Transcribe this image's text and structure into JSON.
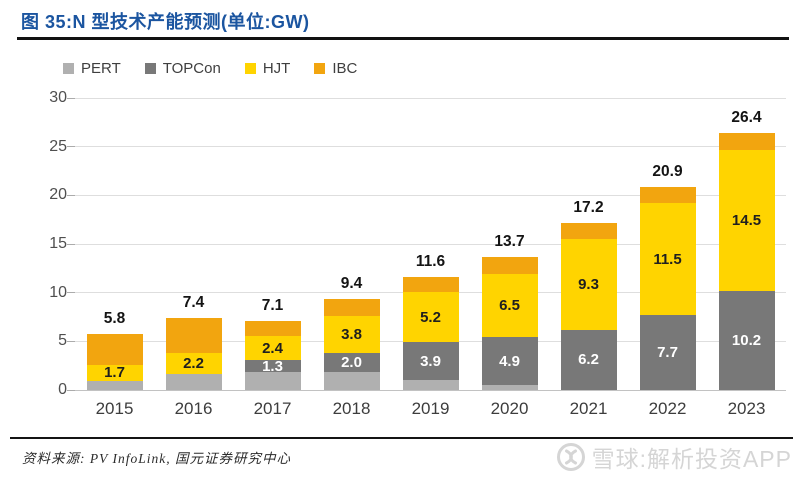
{
  "chart_data": {
    "type": "bar",
    "stacked": true,
    "title": "图 35:N 型技术产能预测(单位:GW)",
    "categories": [
      "2015",
      "2016",
      "2017",
      "2018",
      "2019",
      "2020",
      "2021",
      "2022",
      "2023"
    ],
    "series": [
      {
        "name": "PERT",
        "color": "#b0b0b0",
        "label_color": "#ffffff",
        "values": [
          0.9,
          1.6,
          1.8,
          1.8,
          1.0,
          0.5,
          0.0,
          0.0,
          0.0
        ],
        "labels": [
          null,
          null,
          null,
          null,
          null,
          null,
          null,
          null,
          null
        ]
      },
      {
        "name": "TOPCon",
        "color": "#787878",
        "label_color": "#ffffff",
        "values": [
          0.0,
          0.0,
          1.3,
          2.0,
          3.9,
          4.9,
          6.2,
          7.7,
          10.2
        ],
        "labels": [
          null,
          null,
          "1.3",
          "2.0",
          "3.9",
          "4.9",
          "6.2",
          "7.7",
          "10.2"
        ]
      },
      {
        "name": "HJT",
        "color": "#ffd400",
        "label_color": "#1f1f1f",
        "values": [
          1.7,
          2.2,
          2.4,
          3.8,
          5.2,
          6.5,
          9.3,
          11.5,
          14.5
        ],
        "labels": [
          "1.7",
          "2.2",
          "2.4",
          "3.8",
          "5.2",
          "6.5",
          "9.3",
          "11.5",
          "14.5"
        ]
      },
      {
        "name": "IBC",
        "color": "#f2a50f",
        "label_color": "#1f1f1f",
        "values": [
          3.2,
          3.6,
          1.6,
          1.8,
          1.5,
          1.8,
          1.7,
          1.7,
          1.7
        ],
        "labels": [
          null,
          null,
          null,
          null,
          null,
          null,
          null,
          null,
          null
        ]
      }
    ],
    "totals": [
      "5.8",
      "7.4",
      "7.1",
      "9.4",
      "11.6",
      "13.7",
      "17.2",
      "20.9",
      "26.4"
    ],
    "y_ticks": [
      0,
      5,
      10,
      15,
      20,
      25,
      30
    ],
    "ylim": [
      0,
      30
    ],
    "grid": true,
    "legend_position": "top-left"
  },
  "colors": {
    "title_blue": "#1b55a0",
    "divider_black": "#121212",
    "grid_gray": "#dedede",
    "watermark_gray": "#d5d5d5"
  },
  "footer": {
    "source_text": "资料来源: PV InfoLink, 国元证券研究中心"
  },
  "watermark": {
    "logo": "xueqiu-snowball-logo",
    "text": "雪球:解析投资APP"
  }
}
